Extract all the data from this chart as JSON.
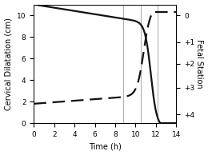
{
  "title": "",
  "xlabel": "Time (h)",
  "ylabel_left": "Cervical Dilatation (cm)",
  "ylabel_right": "Fetal Station",
  "xlim": [
    0,
    14
  ],
  "ylim_left": [
    0,
    11
  ],
  "ylim_right": [
    0,
    11
  ],
  "right_yticklabels": [
    "0",
    "+1",
    "+2",
    "+3",
    "+4"
  ],
  "right_ytick_positions": [
    10.0,
    7.5,
    5.5,
    3.3,
    0.8
  ],
  "vlines": [
    8.8,
    10.5,
    12.2
  ],
  "vline_color": "#b0b0b0",
  "line_color": "#111111",
  "background_color": "#ffffff",
  "xticks": [
    0,
    2,
    4,
    6,
    8,
    10,
    12,
    14
  ],
  "left_yticks": [
    0,
    2,
    4,
    6,
    8,
    10
  ]
}
